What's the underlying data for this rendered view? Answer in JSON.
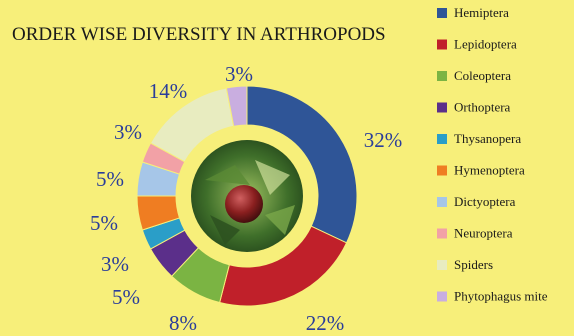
{
  "chart_data": {
    "type": "pie",
    "title": "ORDER WISE DIVERSITY IN ARTHROPODS",
    "legend_position": "right",
    "series": [
      {
        "name": "Hemiptera",
        "value": 32,
        "label": "32%",
        "color": "#2f5597"
      },
      {
        "name": "Lepidoptera",
        "value": 22,
        "label": "22%",
        "color": "#c0202a"
      },
      {
        "name": "Coleoptera",
        "value": 8,
        "label": "8%",
        "color": "#7bb443"
      },
      {
        "name": "Orthoptera",
        "value": 5,
        "label": "5%",
        "color": "#5b2f8a"
      },
      {
        "name": "Thysanopera",
        "value": 3,
        "label": "3%",
        "color": "#2a9ec8"
      },
      {
        "name": "Hymenoptera",
        "value": 5,
        "label": "5%",
        "color": "#ef7d22"
      },
      {
        "name": "Dictyoptera",
        "value": 5,
        "label": "5%",
        "color": "#a6c6e8"
      },
      {
        "name": "Neuroptera",
        "value": 3,
        "label": "3%",
        "color": "#f2a1a6"
      },
      {
        "name": "Spiders",
        "value": 14,
        "label": "14%",
        "color": "#e8ecc0"
      },
      {
        "name": "Phytophagus mite",
        "value": 3,
        "label": "3%",
        "color": "#c9aee0"
      }
    ]
  }
}
